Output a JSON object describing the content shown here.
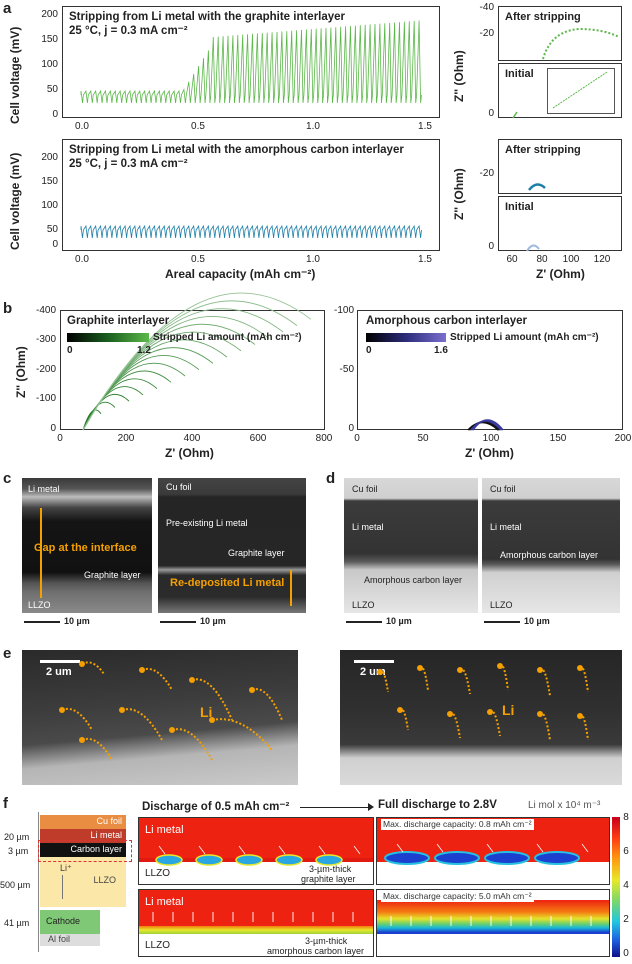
{
  "panels": [
    "a",
    "b",
    "c",
    "d",
    "e",
    "f"
  ],
  "a": {
    "top_title": "Stripping from Li metal with the graphite interlayer",
    "top_cond": "25 °C, j = 0.3 mA cm⁻²",
    "bot_title": "Stripping from Li metal with the amorphous carbon interlayer",
    "bot_cond": "25 °C, j = 0.3 mA cm⁻²",
    "ylabel": "Cell voltage (mV)",
    "xlabel": "Areal capacity (mAh cm⁻²)",
    "yticks": [
      "0",
      "50",
      "100",
      "150",
      "200"
    ],
    "xticks": [
      "0.0",
      "0.5",
      "1.0",
      "1.5"
    ],
    "eis_after": "After stripping",
    "eis_initial": "Initial",
    "eis_ylabel": "Z'' (Ohm)",
    "eis_xlabel": "Z' (Ohm)",
    "eis_xticks": [
      "60",
      "80",
      "100",
      "120"
    ],
    "eis_yticks_top": [
      "-40",
      "-20",
      "0"
    ],
    "eis_yticks_bot": [
      "-20",
      "0"
    ]
  },
  "b": {
    "left_title": "Graphite interlayer",
    "right_title": "Amorphous carbon interlayer",
    "left_bar_label": "Stripped Li amount (mAh cm⁻²)",
    "right_bar_label": "Stripped Li amount (mAh cm⁻²)",
    "left_bar_min": "0",
    "left_bar_max": "1.2",
    "right_bar_min": "0",
    "right_bar_max": "1.6",
    "ylabel": "Z'' (Ohm)",
    "xlabel": "Z' (Ohm)",
    "left_yticks": [
      "-400",
      "-300",
      "-200",
      "-100",
      "0"
    ],
    "left_xticks": [
      "0",
      "200",
      "400",
      "600",
      "800"
    ],
    "right_yticks": [
      "-100",
      "-50",
      "0"
    ],
    "right_xticks": [
      "0",
      "50",
      "100",
      "150",
      "200"
    ]
  },
  "c": {
    "li_metal": "Li metal",
    "gap": "Gap at the interface",
    "graphite": "Graphite layer",
    "llzo": "LLZO",
    "cu_foil": "Cu foil",
    "preexist": "Pre-existing Li metal",
    "graphite2": "Graphite layer",
    "redeposit": "Re-deposited Li metal",
    "scale": "10 µm"
  },
  "d": {
    "cu_foil": "Cu foil",
    "li_metal": "Li metal",
    "amorph": "Amorphous carbon layer",
    "llzo": "LLZO",
    "scale": "10 µm"
  },
  "e": {
    "scale": "2 um",
    "li": "Li"
  },
  "f": {
    "cu": "Cu foil",
    "li": "Li metal",
    "carbon": "Carbon layer",
    "llzo": "LLZO",
    "liplus": "Li⁺",
    "cathode": "Cathode",
    "al": "Al foil",
    "d20": "20 µm",
    "d3": "3 µm",
    "d500": "500 µm",
    "d41": "41 µm",
    "head_left": "Discharge of 0.5 mAh cm⁻²",
    "head_right": "Full discharge to 2.8V",
    "unit": "Li mol x 10⁴ m⁻³",
    "max1": "Max. discharge capacity: 0.8 mAh cm⁻²",
    "max2": "Max. discharge capacity: 5.0 mAh cm⁻²",
    "graphite_note1": "3-µm-thick",
    "graphite_note2": "graphite layer",
    "amorph_note1": "3-µm-thick",
    "amorph_note2": "amorphous carbon layer",
    "cbar": [
      "8",
      "6",
      "4",
      "2",
      "0"
    ]
  },
  "colors": {
    "green": "#5cb84a",
    "teal": "#1e7fa8",
    "purple": "#3a3aa0",
    "orange": "#f5a000"
  }
}
